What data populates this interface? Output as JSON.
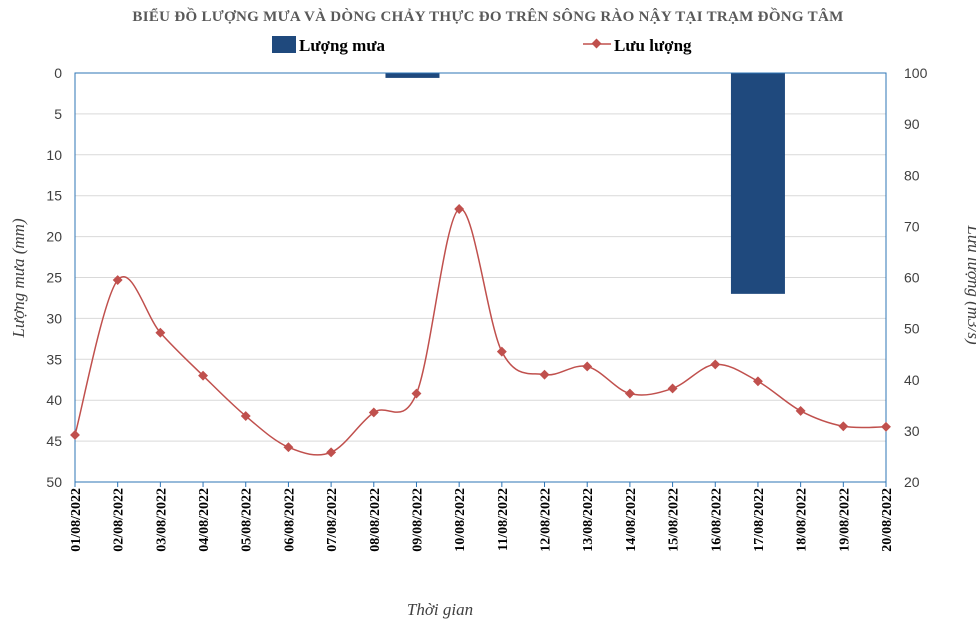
{
  "chart_data": {
    "type": "bar-line-combo",
    "title": "BIỂU ĐỒ LƯỢNG MƯA VÀ DÒNG CHẢY  THỰC ĐO TRÊN  SÔNG RÀO NẬY TẠI TRẠM ĐỒNG TÂM",
    "xlabel": "Thời gian",
    "ylabel_left": "Lượng mưa  (mm)",
    "ylabel_right": "Lưu lượng  (m3/s)",
    "categories": [
      "01/08/2022",
      "02/08/2022",
      "03/08/2022",
      "04/08/2022",
      "05/08/2022",
      "06/08/2022",
      "07/08/2022",
      "08/08/2022",
      "09/08/2022",
      "10/08/2022",
      "11/08/2022",
      "12/08/2022",
      "13/08/2022",
      "14/08/2022",
      "15/08/2022",
      "16/08/2022",
      "17/08/2022",
      "18/08/2022",
      "19/08/2022",
      "20/08/2022"
    ],
    "left_axis": {
      "range": [
        0,
        50
      ],
      "inverted": true,
      "ticks": [
        0,
        5,
        10,
        15,
        20,
        25,
        30,
        35,
        40,
        45,
        50
      ]
    },
    "right_axis": {
      "range": [
        20,
        100
      ],
      "ticks": [
        20,
        30,
        40,
        50,
        60,
        70,
        80,
        90,
        100
      ]
    },
    "grid": true,
    "legend_position": "top",
    "series": [
      {
        "name": "Lượng mưa",
        "type": "bar",
        "axis": "left",
        "color": "#1f497d",
        "values": [
          0,
          0,
          0,
          0,
          0,
          0,
          0,
          0,
          0.6,
          0,
          0,
          0,
          0,
          0,
          0,
          0,
          27,
          0,
          0,
          0
        ]
      },
      {
        "name": "Lưu lượng",
        "type": "line",
        "axis": "right",
        "color": "#c0504d",
        "values": [
          29.2,
          59.5,
          49.2,
          40.8,
          32.9,
          26.8,
          25.8,
          33.6,
          37.3,
          73.4,
          45.5,
          41.0,
          42.6,
          37.3,
          38.3,
          43.0,
          39.7,
          33.9,
          30.9,
          30.8
        ]
      }
    ]
  }
}
